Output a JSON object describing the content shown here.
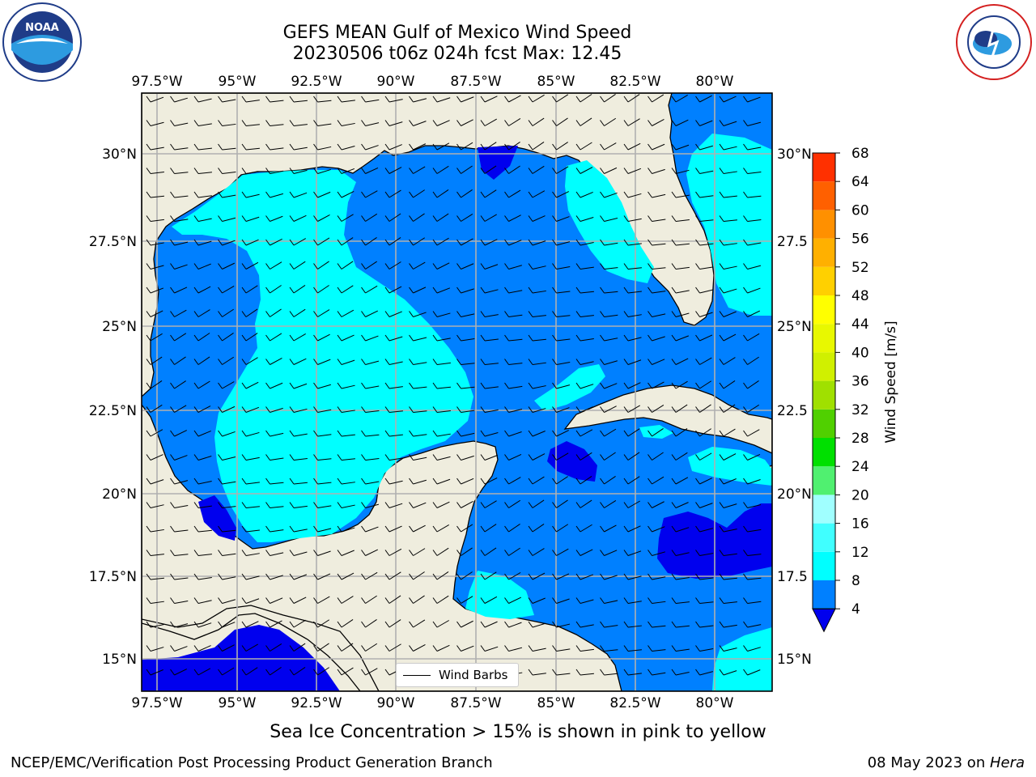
{
  "title": {
    "line1": "GEFS MEAN Gulf of Mexico Wind Speed",
    "line2": "20230506 t06z 024h fcst   Max: 12.45"
  },
  "logos": {
    "left": "NOAA",
    "right": "NATIONAL WEATHER SERVICE"
  },
  "map": {
    "lon_ticks": [
      "97.5°W",
      "95°W",
      "92.5°W",
      "90°W",
      "87.5°W",
      "85°W",
      "82.5°W",
      "80°W"
    ],
    "lat_ticks_left": [
      "30°N",
      "27.5°N",
      "25°N",
      "22.5°N",
      "20°N",
      "17.5°N",
      "15°N"
    ],
    "lat_ticks_right": [
      "30°N",
      "27.5",
      "25°N",
      "22.5",
      "20°N",
      "17.5",
      "15°N"
    ],
    "legend_label": "Wind Barbs",
    "colors": {
      "land": "#efedde",
      "level_4_8": "#0080ff",
      "level_8_12": "#00ffff",
      "below_4": "#0000ee"
    }
  },
  "colorbar": {
    "label": "Wind Speed [m/s]",
    "levels": [
      "4",
      "8",
      "12",
      "16",
      "20",
      "24",
      "28",
      "32",
      "36",
      "40",
      "44",
      "48",
      "52",
      "56",
      "60",
      "64",
      "68"
    ],
    "colors": [
      "#0080ff",
      "#00ffff",
      "#40ffff",
      "#a0ffff",
      "#50f070",
      "#00e000",
      "#50d000",
      "#a0e000",
      "#d0f000",
      "#e8f800",
      "#ffff00",
      "#ffd000",
      "#ffb000",
      "#ff9000",
      "#ff6000",
      "#ff3000",
      "#ff0000"
    ],
    "extend_color": "#0000ee"
  },
  "caption": "Sea Ice Concentration > 15% is shown in pink to yellow",
  "footer": {
    "left": "NCEP/EMC/Verification Post Processing Product Generation Branch",
    "right_date": "08 May 2023 on ",
    "right_host": "Hera"
  }
}
